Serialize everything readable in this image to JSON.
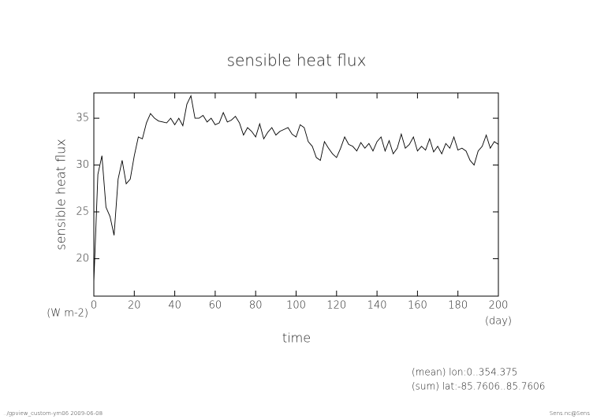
{
  "chart_data": {
    "type": "line",
    "title": "sensible heat flux",
    "ylabel": "sensible heat flux",
    "yunit": "(W m-2)",
    "xlabel": "time",
    "xunit": "(day)",
    "annotations": [
      "(mean) lon:0..354.375",
      "(sum) lat:-85.7606..85.7606"
    ],
    "footer_left": "../gpview_custom-ym06  2009-06-08",
    "footer_right": "Sens.nc@Sens",
    "color": "#000000",
    "xlim": [
      0,
      200
    ],
    "ylim": [
      16,
      37.7
    ],
    "xticks": [
      0,
      20,
      40,
      60,
      80,
      100,
      120,
      140,
      160,
      180,
      200
    ],
    "yticks": [
      20,
      25,
      30,
      35
    ],
    "x": [
      0,
      2,
      4,
      6,
      8,
      10,
      12,
      14,
      16,
      18,
      20,
      22,
      24,
      26,
      28,
      30,
      32,
      34,
      36,
      38,
      40,
      42,
      44,
      46,
      48,
      50,
      52,
      54,
      56,
      58,
      60,
      62,
      64,
      66,
      68,
      70,
      72,
      74,
      76,
      78,
      80,
      82,
      84,
      86,
      88,
      90,
      92,
      94,
      96,
      98,
      100,
      102,
      104,
      106,
      108,
      110,
      112,
      114,
      116,
      118,
      120,
      122,
      124,
      126,
      128,
      130,
      132,
      134,
      136,
      138,
      140,
      142,
      144,
      146,
      148,
      150,
      152,
      154,
      156,
      158,
      160,
      162,
      164,
      166,
      168,
      170,
      172,
      174,
      176,
      178,
      180,
      182,
      184,
      186,
      188,
      190,
      192,
      194,
      196,
      198,
      200
    ],
    "values": [
      17.5,
      29,
      31,
      25.5,
      24.5,
      22.5,
      28.5,
      30.5,
      28,
      28.5,
      31,
      33,
      32.8,
      34.5,
      35.5,
      35,
      34.7,
      34.6,
      34.5,
      35,
      34.3,
      35,
      34.2,
      36.5,
      37.4,
      35,
      35,
      35.3,
      34.6,
      35,
      34.3,
      34.5,
      35.6,
      34.6,
      34.8,
      35.2,
      34.5,
      33.2,
      34,
      33.6,
      33,
      34.4,
      32.8,
      33.5,
      34,
      33.2,
      33.6,
      33.8,
      34,
      33.3,
      33,
      34.3,
      34,
      32.5,
      32,
      30.8,
      30.5,
      32.5,
      31.8,
      31.2,
      30.8,
      31.8,
      33,
      32.2,
      32,
      31.5,
      32.4,
      31.8,
      32.3,
      31.5,
      32.5,
      33,
      31.5,
      32.6,
      31.2,
      31.8,
      33.3,
      31.8,
      32.2,
      33,
      31.5,
      32,
      31.6,
      32.8,
      31.4,
      32,
      31.2,
      32.3,
      31.8,
      33,
      31.6,
      31.8,
      31.5,
      30.5,
      30,
      31.5,
      32,
      33.2,
      31.8,
      32.5,
      32.2
    ]
  }
}
